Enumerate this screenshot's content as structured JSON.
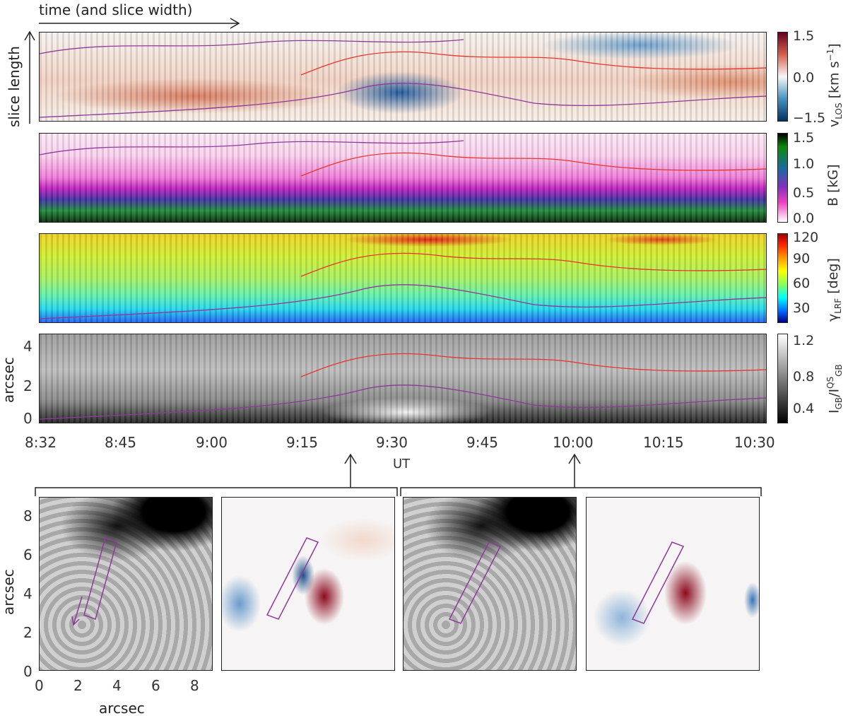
{
  "chart_data": [
    {
      "type": "heatmap",
      "panel": "vlos",
      "colorbar_label": "v_LOS [km s^-1]",
      "colorbar_ticks": [
        "1.5",
        "0.0",
        "−1.5"
      ],
      "clim": [
        -1.5,
        1.5
      ],
      "colormap": "red-white-blue"
    },
    {
      "type": "heatmap",
      "panel": "B",
      "colorbar_label": "B [kG]",
      "colorbar_ticks": [
        "1.5",
        "1.0",
        "0.5",
        "0.0"
      ],
      "clim": [
        0,
        1.5
      ],
      "colormap": "white-magenta-blue-green-black"
    },
    {
      "type": "heatmap",
      "panel": "gamma",
      "colorbar_label": "γ_LRF [deg]",
      "colorbar_ticks": [
        "120",
        "90",
        "60",
        "30"
      ],
      "clim": [
        20,
        125
      ],
      "colormap": "rainbow"
    },
    {
      "type": "heatmap",
      "panel": "intensity",
      "colorbar_label": "I_GB/I_GB^QS",
      "colorbar_ticks": [
        "1.2",
        "0.8",
        "0.4"
      ],
      "clim": [
        0.2,
        1.3
      ],
      "colormap": "gray",
      "ylabel": "arcsec",
      "yticks": [
        "4",
        "2",
        "0"
      ]
    },
    {
      "type": "heatmap",
      "panel": "bottom-maps",
      "xlabel": "arcsec",
      "ylabel": "arcsec",
      "xticks": [
        "0",
        "2",
        "4",
        "6",
        "8"
      ],
      "yticks": [
        "8",
        "6",
        "4",
        "2",
        "0"
      ]
    }
  ],
  "annotations": {
    "time_arrow": "time (and slice width)",
    "slice_arrow": "slice length"
  },
  "time_axis": {
    "ticks": [
      "8:32",
      "8:45",
      "9:00",
      "9:15",
      "9:30",
      "9:45",
      "10:00",
      "10:15",
      "10:30"
    ],
    "label": "UT"
  },
  "labels": {
    "vlos": "v",
    "vlos_sub": "LOS",
    "vlos_unit": "[km s",
    "vlos_exp": "−1",
    "vlos_close": "]",
    "B": "B [kG]",
    "gamma": "γ",
    "gamma_sub": "LRF",
    "gamma_unit": "[deg]",
    "I": "I",
    "I_sub": "GB",
    "I_over": "/I",
    "I_sup": "QS",
    "I_sub2": "GB"
  },
  "colors": {
    "contour_red": "#e8352e",
    "contour_purple": "#8e3a9a"
  }
}
